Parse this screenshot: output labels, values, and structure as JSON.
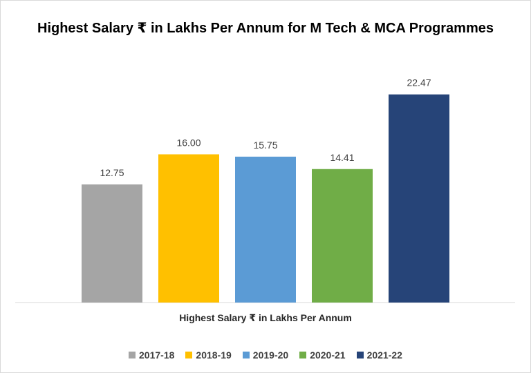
{
  "chart_data": {
    "type": "bar",
    "title": "Highest Salary ₹ in Lakhs Per Annum for M Tech & MCA Programmes",
    "xlabel": "Highest Salary ₹ in Lakhs Per Annum",
    "ylabel": "",
    "ylim": [
      0,
      25
    ],
    "grid": false,
    "legend_position": "bottom",
    "categories": [
      "2017-18",
      "2018-19",
      "2019-20",
      "2020-21",
      "2021-22"
    ],
    "values": [
      12.75,
      16.0,
      15.75,
      14.41,
      22.47
    ],
    "data_labels": [
      "12.75",
      "16.00",
      "15.75",
      "14.41",
      "22.47"
    ],
    "colors": [
      "#a5a5a5",
      "#ffc000",
      "#5b9bd5",
      "#70ad47",
      "#264478"
    ]
  }
}
